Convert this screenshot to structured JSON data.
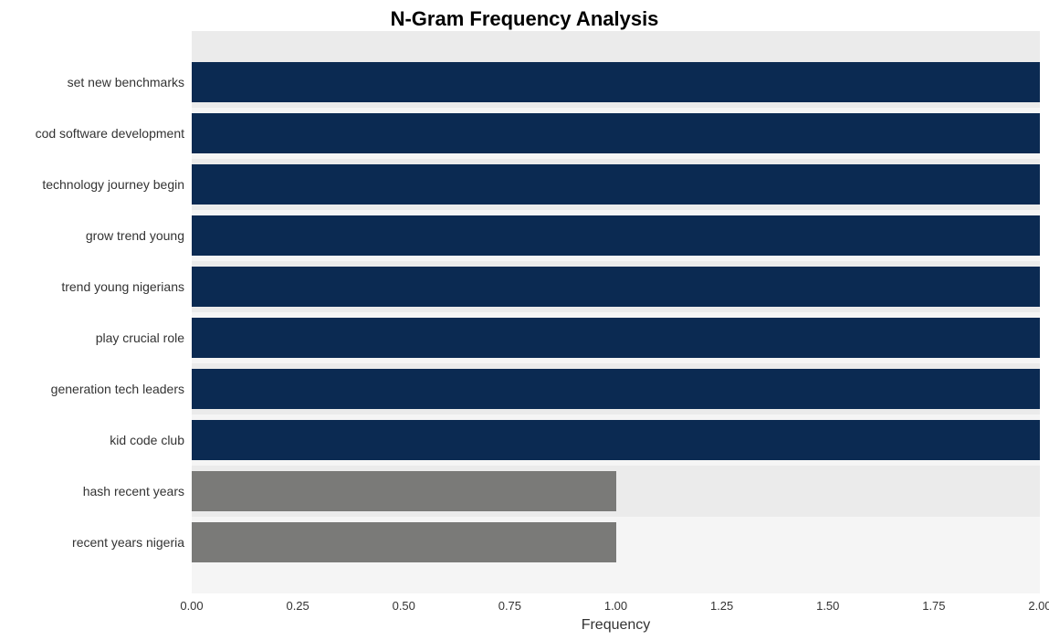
{
  "chart": {
    "type": "bar-horizontal",
    "title": "N-Gram Frequency Analysis",
    "title_fontsize": 22,
    "title_weight": "bold",
    "xlabel": "Frequency",
    "xlabel_fontsize": 16,
    "xlim": [
      0,
      2.0
    ],
    "xtick_step": 0.25,
    "xticks": [
      "0.00",
      "0.25",
      "0.50",
      "0.75",
      "1.00",
      "1.25",
      "1.50",
      "1.75",
      "2.00"
    ],
    "tick_fontsize": 13,
    "ylabel_fontsize": 14,
    "background_band_colors": [
      "#ebebeb",
      "#f5f5f5"
    ],
    "grid_color": "#ffffff",
    "plot_bg": "#ffffff",
    "bar_colors_palette": {
      "high": "#0b2a52",
      "low": "#7a7a78"
    },
    "bars": [
      {
        "label": "set new benchmarks",
        "value": 2.0,
        "color": "#0b2a52"
      },
      {
        "label": "cod software development",
        "value": 2.0,
        "color": "#0b2a52"
      },
      {
        "label": "technology journey begin",
        "value": 2.0,
        "color": "#0b2a52"
      },
      {
        "label": "grow trend young",
        "value": 2.0,
        "color": "#0b2a52"
      },
      {
        "label": "trend young nigerians",
        "value": 2.0,
        "color": "#0b2a52"
      },
      {
        "label": "play crucial role",
        "value": 2.0,
        "color": "#0b2a52"
      },
      {
        "label": "generation tech leaders",
        "value": 2.0,
        "color": "#0b2a52"
      },
      {
        "label": "kid code club",
        "value": 2.0,
        "color": "#0b2a52"
      },
      {
        "label": "hash recent years",
        "value": 1.0,
        "color": "#7a7a78"
      },
      {
        "label": "recent years nigeria",
        "value": 1.0,
        "color": "#7a7a78"
      }
    ]
  }
}
